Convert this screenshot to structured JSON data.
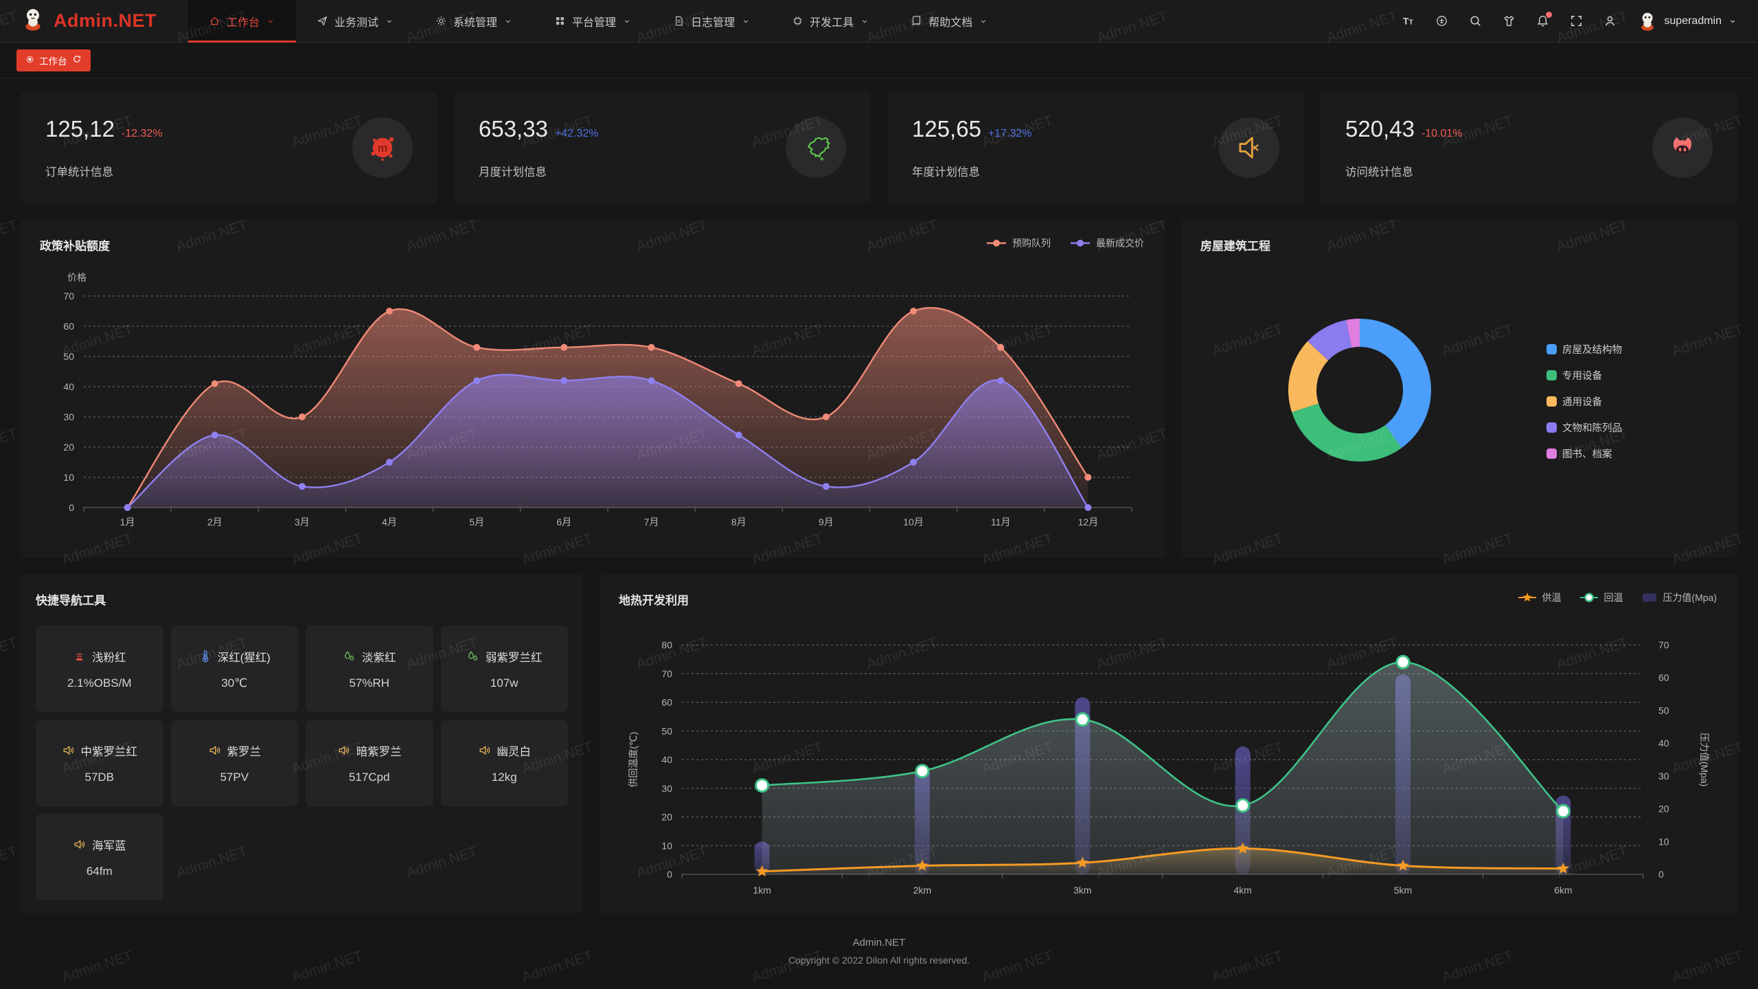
{
  "brand": {
    "name": "Admin.NET",
    "color": "#de3428"
  },
  "nav": {
    "items": [
      {
        "label": "工作台",
        "icon": "home",
        "active": true
      },
      {
        "label": "业务测试",
        "icon": "send",
        "active": false
      },
      {
        "label": "系统管理",
        "icon": "gear",
        "active": false
      },
      {
        "label": "平台管理",
        "icon": "grid",
        "active": false
      },
      {
        "label": "日志管理",
        "icon": "file",
        "active": false
      },
      {
        "label": "开发工具",
        "icon": "chip",
        "active": false
      },
      {
        "label": "帮助文档",
        "icon": "book",
        "active": false
      }
    ]
  },
  "header_actions": [
    {
      "name": "text-size",
      "icon": "text-size",
      "badge": false
    },
    {
      "name": "language",
      "icon": "globe",
      "badge": false
    },
    {
      "name": "search",
      "icon": "search",
      "badge": false
    },
    {
      "name": "theme",
      "icon": "shirt",
      "badge": false
    },
    {
      "name": "notifications",
      "icon": "bell",
      "badge": true
    },
    {
      "name": "fullscreen",
      "icon": "fullscreen",
      "badge": false
    },
    {
      "name": "profile",
      "icon": "user",
      "badge": false
    }
  ],
  "user": {
    "name": "superadmin"
  },
  "tabs": [
    {
      "label": "工作台",
      "active": true
    }
  ],
  "stats": [
    {
      "value": "125,12",
      "delta": "-12.32%",
      "trend": "down",
      "label": "订单统计信息",
      "icon": "meetup-blob"
    },
    {
      "value": "653,33",
      "delta": "+42.32%",
      "trend": "up",
      "label": "月度计划信息",
      "icon": "china-map"
    },
    {
      "value": "125,65",
      "delta": "+17.32%",
      "trend": "up",
      "label": "年度计划信息",
      "icon": "speaker-mute"
    },
    {
      "value": "520,43",
      "delta": "-10.01%",
      "trend": "down",
      "label": "访问统计信息",
      "icon": "cat"
    }
  ],
  "quick_nav": {
    "title": "快捷导航工具",
    "items": [
      {
        "label": "浅粉红",
        "value": "2.1%OBS/M",
        "icon": "smoke",
        "icon_color": "#e04b43"
      },
      {
        "label": "深红(猩红)",
        "value": "30℃",
        "icon": "thermometer",
        "icon_color": "#5b8def"
      },
      {
        "label": "淡紫红",
        "value": "57%RH",
        "icon": "humidity",
        "icon_color": "#6ec05a"
      },
      {
        "label": "弱紫罗兰红",
        "value": "107w",
        "icon": "humidity",
        "icon_color": "#6ec05a"
      },
      {
        "label": "中紫罗兰红",
        "value": "57DB",
        "icon": "speaker",
        "icon_color": "#e6b45a"
      },
      {
        "label": "紫罗兰",
        "value": "57PV",
        "icon": "speaker",
        "icon_color": "#e6b45a"
      },
      {
        "label": "暗紫罗兰",
        "value": "517Cpd",
        "icon": "speaker",
        "icon_color": "#e6b45a"
      },
      {
        "label": "幽灵白",
        "value": "12kg",
        "icon": "speaker",
        "icon_color": "#e6b45a"
      },
      {
        "label": "海军蓝",
        "value": "64fm",
        "icon": "speaker",
        "icon_color": "#e6b45a"
      }
    ]
  },
  "footer": {
    "line1": "Admin.NET",
    "line2": "Copyright © 2022 Dilon All rights reserved."
  },
  "watermark": "Admin.NET",
  "chart_data": [
    {
      "type": "area",
      "title": "政策补贴额度",
      "ylabel": "价格",
      "categories": [
        "1月",
        "2月",
        "3月",
        "4月",
        "5月",
        "6月",
        "7月",
        "8月",
        "9月",
        "10月",
        "11月",
        "12月"
      ],
      "ylim": [
        0,
        70
      ],
      "ytick_step": 10,
      "grid": "dashed-horizontal",
      "legend_position": "top-right",
      "smooth": true,
      "series": [
        {
          "name": "预购队列",
          "color": "#f08a76",
          "values": [
            0,
            41,
            30,
            65,
            53,
            53,
            53,
            41,
            30,
            65,
            53,
            10
          ]
        },
        {
          "name": "最新成交价",
          "color": "#8f80f0",
          "values": [
            0,
            24,
            7,
            15,
            42,
            42,
            42,
            24,
            7,
            15,
            42,
            0
          ]
        }
      ]
    },
    {
      "type": "pie",
      "title": "房屋建筑工程",
      "donut": true,
      "legend_position": "right",
      "slices": [
        {
          "name": "房屋及结构物",
          "value": 40,
          "color": "#4b9ef9"
        },
        {
          "name": "专用设备",
          "value": 30,
          "color": "#3dbe7b"
        },
        {
          "name": "通用设备",
          "value": 17,
          "color": "#f9b95c"
        },
        {
          "name": "文物和陈列品",
          "value": 10,
          "color": "#8b7cf0"
        },
        {
          "name": "图书、档案",
          "value": 3,
          "color": "#e07ee0"
        }
      ]
    },
    {
      "type": "mixed",
      "title": "地热开发利用",
      "categories": [
        "1km",
        "2km",
        "3km",
        "4km",
        "5km",
        "6km"
      ],
      "left_axis": {
        "label": "供回温度(℃)",
        "min": 0,
        "max": 80,
        "step": 10
      },
      "right_axis": {
        "label": "压力值(Mpa)",
        "min": 0,
        "max": 70,
        "step": 10
      },
      "grid": "dashed-horizontal",
      "legend_position": "top-right",
      "series": [
        {
          "name": "供温",
          "type": "line",
          "axis": "left",
          "color": "#f59a23",
          "marker": "star",
          "values": [
            1,
            3,
            4,
            9,
            3,
            2
          ]
        },
        {
          "name": "回温",
          "type": "line",
          "axis": "left",
          "color": "#3ec487",
          "marker": "circle",
          "values": [
            31,
            36,
            54,
            24,
            74,
            22
          ]
        },
        {
          "name": "压力值(Mpa)",
          "type": "bar",
          "axis": "right",
          "color": "#55509d",
          "values": [
            10,
            33,
            54,
            39,
            61,
            24
          ]
        }
      ]
    }
  ]
}
